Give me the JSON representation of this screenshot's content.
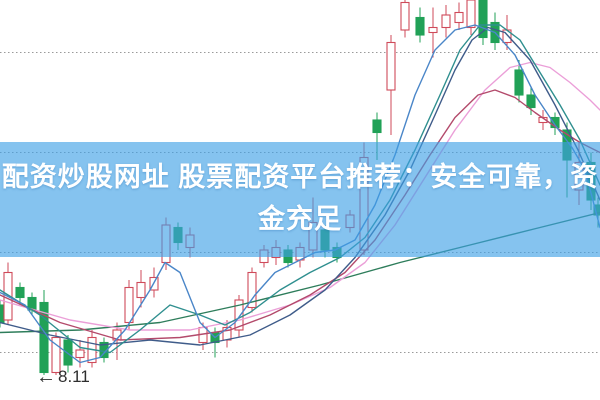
{
  "page": {
    "background": "#ffffff"
  },
  "banner": {
    "line1": "配资炒股网址 股票配资平台推荐：安全可靠，资",
    "line2": "金充足",
    "full_text": "配资炒股网址 股票配资平台推荐：安全可靠，资金充足",
    "bg_color": "rgba(62,160,230,0.63)",
    "text_color": "#ffffff"
  },
  "chart_data": {
    "type": "candlestick",
    "legend": "none",
    "x_unit": "px",
    "xlim": [
      0,
      600
    ],
    "ylim": [
      8.01,
      9.61
    ],
    "grid": {
      "prices": [
        9.4,
        9.0,
        8.6,
        8.2
      ],
      "style": "dotted",
      "color": "#9a9a9a"
    },
    "colors": {
      "up": "#cf4a5a",
      "up_fill": "#ffffff",
      "down": "#21a157"
    },
    "candle_width": 8,
    "low_annotation": {
      "label": "8.11",
      "price": 8.11,
      "arrow": "←"
    },
    "candles": [
      [
        0,
        8.39,
        8.41,
        8.3,
        8.32
      ],
      [
        8,
        8.33,
        8.56,
        8.31,
        8.52
      ],
      [
        20,
        8.46,
        8.48,
        8.39,
        8.42
      ],
      [
        32,
        8.42,
        8.44,
        8.35,
        8.37
      ],
      [
        44,
        8.4,
        8.45,
        8.11,
        8.12
      ],
      [
        56,
        8.12,
        8.28,
        8.11,
        8.26
      ],
      [
        68,
        8.25,
        8.27,
        8.12,
        8.15
      ],
      [
        80,
        8.18,
        8.25,
        8.14,
        8.21
      ],
      [
        92,
        8.16,
        8.29,
        8.14,
        8.26
      ],
      [
        104,
        8.24,
        8.26,
        8.16,
        8.18
      ],
      [
        117,
        8.25,
        8.32,
        8.17,
        8.29
      ],
      [
        129,
        8.32,
        8.49,
        8.29,
        8.46
      ],
      [
        141,
        8.42,
        8.53,
        8.38,
        8.48
      ],
      [
        154,
        8.45,
        8.54,
        8.42,
        8.5
      ],
      [
        166,
        8.56,
        8.74,
        8.53,
        8.71
      ],
      [
        178,
        8.7,
        8.72,
        8.61,
        8.64
      ],
      [
        190,
        8.62,
        8.7,
        8.58,
        8.67
      ],
      [
        203,
        8.24,
        8.32,
        8.21,
        8.3
      ],
      [
        215,
        8.28,
        8.3,
        8.18,
        8.24
      ],
      [
        227,
        8.25,
        8.33,
        8.22,
        8.3
      ],
      [
        239,
        8.29,
        8.43,
        8.26,
        8.41
      ],
      [
        252,
        8.38,
        8.54,
        8.36,
        8.52
      ],
      [
        264,
        8.56,
        8.63,
        8.54,
        8.61
      ],
      [
        276,
        8.58,
        8.65,
        8.55,
        8.62
      ],
      [
        288,
        8.61,
        8.63,
        8.54,
        8.56
      ],
      [
        300,
        8.57,
        8.64,
        8.54,
        8.62
      ],
      [
        313,
        8.61,
        8.82,
        8.58,
        8.72
      ],
      [
        325,
        8.69,
        8.71,
        8.58,
        8.61
      ],
      [
        337,
        8.62,
        8.64,
        8.56,
        8.58
      ],
      [
        350,
        8.7,
        8.77,
        8.68,
        8.75
      ],
      [
        364,
        8.61,
        9.04,
        8.59,
        8.98
      ],
      [
        377,
        9.13,
        9.16,
        8.97,
        9.08
      ],
      [
        391,
        9.25,
        9.47,
        9.07,
        9.44
      ],
      [
        405,
        9.49,
        9.61,
        9.46,
        9.6
      ],
      [
        420,
        9.54,
        9.58,
        9.44,
        9.47
      ],
      [
        433,
        9.48,
        9.58,
        9.38,
        9.5
      ],
      [
        446,
        9.5,
        9.59,
        9.46,
        9.55
      ],
      [
        459,
        9.52,
        9.6,
        9.49,
        9.56
      ],
      [
        471,
        9.5,
        9.61,
        9.47,
        9.61
      ],
      [
        483,
        9.61,
        9.61,
        9.43,
        9.46
      ],
      [
        495,
        9.52,
        9.56,
        9.41,
        9.44
      ],
      [
        507,
        9.44,
        9.55,
        9.41,
        9.49
      ],
      [
        519,
        9.33,
        9.37,
        9.2,
        9.23
      ],
      [
        531,
        9.23,
        9.26,
        9.15,
        9.18
      ],
      [
        543,
        9.12,
        9.17,
        9.09,
        9.14
      ],
      [
        555,
        9.14,
        9.16,
        9.07,
        9.1
      ],
      [
        567,
        9.09,
        9.12,
        8.82,
        8.97
      ],
      [
        579,
        8.85,
        9.04,
        8.79,
        8.96
      ],
      [
        591,
        8.96,
        9.0,
        8.77,
        8.81
      ],
      [
        598,
        8.79,
        8.82,
        8.7,
        8.75
      ]
    ],
    "ma_lines": [
      {
        "name": "ma-slow-darkgreen",
        "color": "#2e7d5b",
        "points": [
          [
            0,
            8.28
          ],
          [
            80,
            8.29
          ],
          [
            160,
            8.32
          ],
          [
            240,
            8.39
          ],
          [
            320,
            8.47
          ],
          [
            400,
            8.56
          ],
          [
            470,
            8.63
          ],
          [
            540,
            8.7
          ],
          [
            600,
            8.76
          ]
        ]
      },
      {
        "name": "ma-pink",
        "color": "#eb9fd8",
        "points": [
          [
            0,
            8.41
          ],
          [
            70,
            8.33
          ],
          [
            130,
            8.29
          ],
          [
            190,
            8.29
          ],
          [
            240,
            8.33
          ],
          [
            290,
            8.39
          ],
          [
            330,
            8.46
          ],
          [
            365,
            8.56
          ],
          [
            395,
            8.71
          ],
          [
            425,
            8.9
          ],
          [
            455,
            9.09
          ],
          [
            485,
            9.25
          ],
          [
            510,
            9.34
          ],
          [
            530,
            9.36
          ],
          [
            550,
            9.34
          ],
          [
            570,
            9.28
          ],
          [
            590,
            9.21
          ],
          [
            600,
            9.17
          ]
        ]
      },
      {
        "name": "ma-crimson",
        "color": "#b34a6b",
        "points": [
          [
            0,
            8.43
          ],
          [
            60,
            8.32
          ],
          [
            120,
            8.25
          ],
          [
            180,
            8.26
          ],
          [
            230,
            8.29
          ],
          [
            270,
            8.35
          ],
          [
            310,
            8.43
          ],
          [
            345,
            8.52
          ],
          [
            375,
            8.65
          ],
          [
            405,
            8.83
          ],
          [
            430,
            8.99
          ],
          [
            455,
            9.14
          ],
          [
            478,
            9.23
          ],
          [
            495,
            9.25
          ],
          [
            515,
            9.22
          ],
          [
            535,
            9.16
          ],
          [
            560,
            9.09
          ],
          [
            580,
            9.04
          ],
          [
            600,
            9.0
          ]
        ]
      },
      {
        "name": "ma-slate",
        "color": "#3f5c8a",
        "points": [
          [
            0,
            8.32
          ],
          [
            50,
            8.27
          ],
          [
            100,
            8.23
          ],
          [
            150,
            8.25
          ],
          [
            200,
            8.23
          ],
          [
            250,
            8.27
          ],
          [
            290,
            8.35
          ],
          [
            325,
            8.45
          ],
          [
            355,
            8.58
          ],
          [
            385,
            8.75
          ],
          [
            410,
            8.93
          ],
          [
            435,
            9.15
          ],
          [
            455,
            9.33
          ],
          [
            472,
            9.45
          ],
          [
            488,
            9.5
          ],
          [
            505,
            9.48
          ],
          [
            530,
            9.37
          ],
          [
            555,
            9.19
          ],
          [
            578,
            9.01
          ],
          [
            600,
            8.81
          ]
        ]
      },
      {
        "name": "ma-teal",
        "color": "#2f8f8f",
        "points": [
          [
            0,
            8.45
          ],
          [
            40,
            8.35
          ],
          [
            80,
            8.22
          ],
          [
            110,
            8.2
          ],
          [
            140,
            8.29
          ],
          [
            170,
            8.39
          ],
          [
            200,
            8.35
          ],
          [
            225,
            8.31
          ],
          [
            250,
            8.36
          ],
          [
            280,
            8.45
          ],
          [
            310,
            8.52
          ],
          [
            340,
            8.58
          ],
          [
            365,
            8.66
          ],
          [
            390,
            8.81
          ],
          [
            415,
            9.01
          ],
          [
            440,
            9.23
          ],
          [
            460,
            9.41
          ],
          [
            480,
            9.51
          ],
          [
            500,
            9.51
          ],
          [
            520,
            9.45
          ],
          [
            540,
            9.32
          ],
          [
            560,
            9.19
          ],
          [
            580,
            9.05
          ],
          [
            600,
            8.87
          ]
        ]
      },
      {
        "name": "ma-fast-blue",
        "color": "#4a86c8",
        "points": [
          [
            0,
            8.44
          ],
          [
            25,
            8.39
          ],
          [
            50,
            8.25
          ],
          [
            80,
            8.16
          ],
          [
            100,
            8.18
          ],
          [
            125,
            8.29
          ],
          [
            150,
            8.45
          ],
          [
            165,
            8.56
          ],
          [
            180,
            8.52
          ],
          [
            200,
            8.32
          ],
          [
            215,
            8.26
          ],
          [
            235,
            8.32
          ],
          [
            255,
            8.43
          ],
          [
            275,
            8.52
          ],
          [
            295,
            8.56
          ],
          [
            315,
            8.6
          ],
          [
            335,
            8.61
          ],
          [
            355,
            8.65
          ],
          [
            375,
            8.79
          ],
          [
            395,
            8.99
          ],
          [
            415,
            9.23
          ],
          [
            435,
            9.41
          ],
          [
            455,
            9.49
          ],
          [
            475,
            9.51
          ],
          [
            495,
            9.48
          ],
          [
            515,
            9.39
          ],
          [
            535,
            9.23
          ],
          [
            555,
            9.11
          ],
          [
            572,
            9.02
          ],
          [
            585,
            8.93
          ],
          [
            600,
            8.7
          ]
        ]
      }
    ]
  }
}
